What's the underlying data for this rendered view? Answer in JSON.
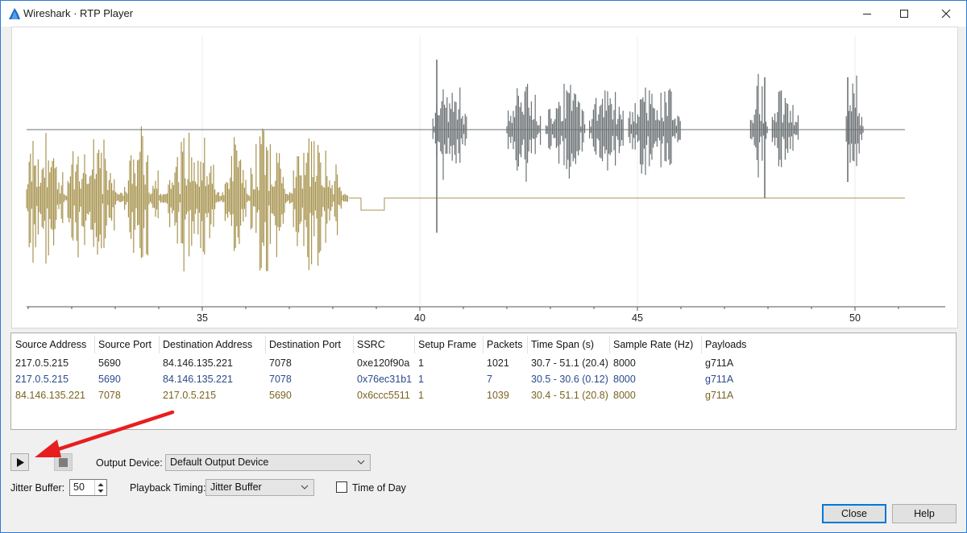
{
  "window": {
    "title": "Wireshark · RTP Player",
    "icon": "wireshark-fin-icon"
  },
  "plot": {
    "x_ticks": [
      "35",
      "40",
      "45",
      "50"
    ],
    "series_colors": {
      "forward": "#a89450",
      "reverse": "#6c7274"
    }
  },
  "streams": {
    "columns": [
      "Source Address",
      "Source Port",
      "Destination Address",
      "Destination Port",
      "SSRC",
      "Setup Frame",
      "Packets",
      "Time Span (s)",
      "Sample Rate (Hz)",
      "Payloads"
    ],
    "rows": [
      {
        "color": "#222222",
        "cells": [
          "217.0.5.215",
          "5690",
          "84.146.135.221",
          "7078",
          "0xe120f90a",
          "1",
          "1021",
          "30.7 - 51.1 (20.4)",
          "8000",
          "g711A"
        ]
      },
      {
        "color": "#2b4a8c",
        "cells": [
          "217.0.5.215",
          "5690",
          "84.146.135.221",
          "7078",
          "0x76ec31b1",
          "1",
          "7",
          "30.5 - 30.6 (0.12)",
          "8000",
          "g711A"
        ]
      },
      {
        "color": "#7a6320",
        "cells": [
          "84.146.135.221",
          "7078",
          "217.0.5.215",
          "5690",
          "0x6ccc5511",
          "1",
          "1039",
          "30.4 - 51.1 (20.8)",
          "8000",
          "g711A"
        ]
      }
    ]
  },
  "controls": {
    "play_icon": "play-icon",
    "stop_icon": "stop-icon",
    "output_device_label": "Output Device:",
    "output_device_value": "Default Output Device",
    "jitter_buffer_label": "Jitter Buffer:",
    "jitter_buffer_value": "50",
    "playback_timing_label": "Playback Timing:",
    "playback_timing_value": "Jitter Buffer",
    "time_of_day_label": "Time of Day",
    "time_of_day_checked": false
  },
  "buttons": {
    "close": "Close",
    "help": "Help"
  },
  "annotation": {
    "arrow_color": "#e81e1e"
  }
}
